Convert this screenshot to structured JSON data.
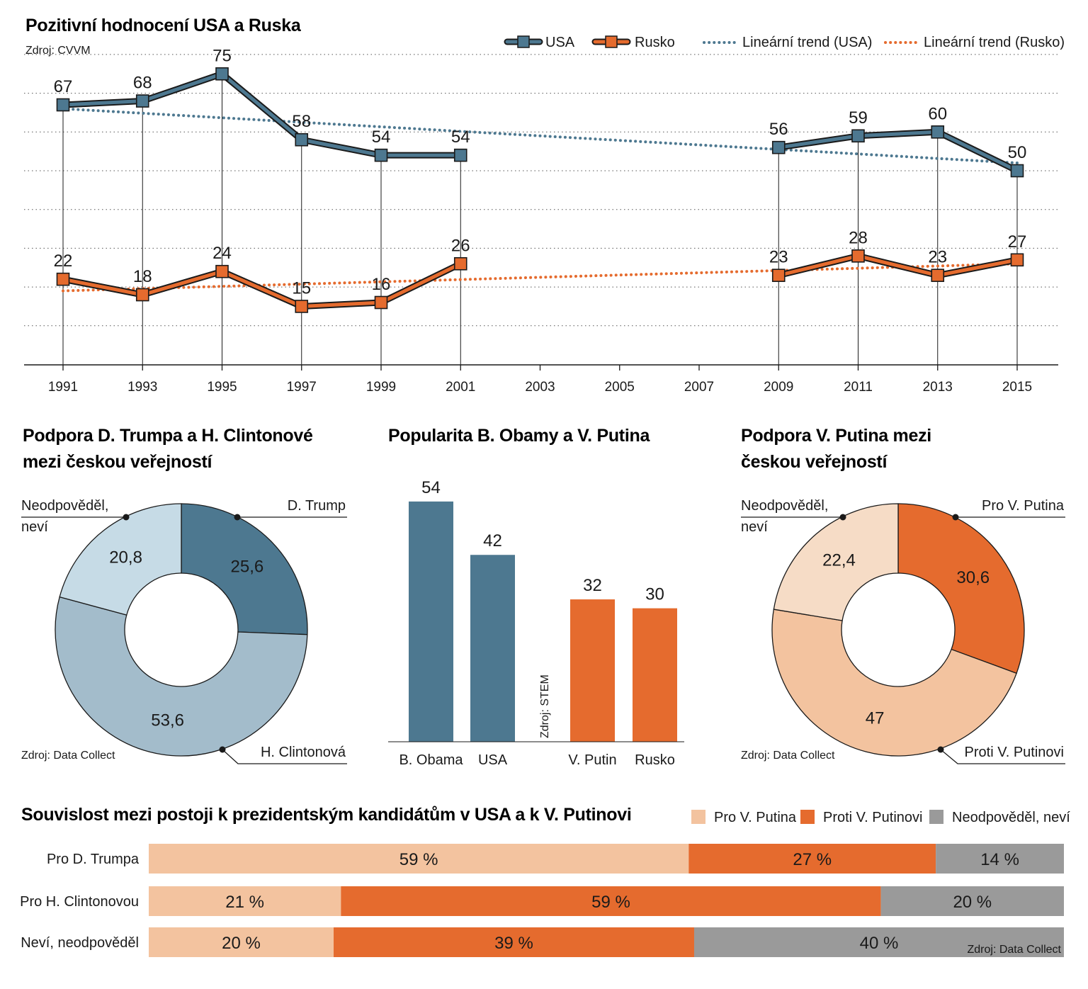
{
  "colors": {
    "usa": "#4d7890",
    "russia": "#e56b2e",
    "usa_light": "#a3bccb",
    "usa_lighter": "#c6dbe6",
    "pro_putin": "#f3c39f",
    "pro_putin_light": "#f6dcc6",
    "neutral": "#9a9a9a"
  },
  "chart_data": [
    {
      "type": "line",
      "title": "Pozitivní hodnocení USA a Ruska",
      "source": "Zdroj: CVVM",
      "x": [
        "1991",
        "1993",
        "1995",
        "1997",
        "1999",
        "2001",
        "2003",
        "2005",
        "2007",
        "2009",
        "2011",
        "2013",
        "2015"
      ],
      "series": [
        {
          "name": "USA",
          "values": [
            67,
            68,
            75,
            58,
            54,
            54,
            null,
            null,
            null,
            56,
            59,
            60,
            50
          ]
        },
        {
          "name": "Rusko",
          "values": [
            22,
            18,
            24,
            15,
            16,
            26,
            null,
            null,
            null,
            23,
            28,
            23,
            27
          ]
        }
      ],
      "trends": [
        {
          "name": "Lineární trend (USA)",
          "start": 66,
          "end": 52
        },
        {
          "name": "Lineární trend (Rusko)",
          "start": 19,
          "end": 26
        }
      ],
      "ylim": [
        0,
        80
      ],
      "grid": true,
      "legend": "top-right"
    },
    {
      "type": "pie",
      "title": "Podpora D. Trumpa a H. Clintonové mezi českou veřejností",
      "title_lines": [
        "Podpora D. Trumpa a H. Clintonové",
        "mezi českou veřejností"
      ],
      "source": "Zdroj: Data Collect",
      "slices": [
        {
          "name": "D. Trump",
          "value": 25.6,
          "label": "25,6"
        },
        {
          "name": "H. Clintonová",
          "value": 53.6,
          "label": "53,6"
        },
        {
          "name": "Neodpověděl, neví",
          "value": 20.8,
          "label": "20,8"
        }
      ],
      "callout_neutral": [
        "Neodpověděl,",
        "neví"
      ]
    },
    {
      "type": "bar",
      "title": "Popularita B. Obamy a V. Putina",
      "source": "Zdroj: STEM",
      "categories": [
        "B. Obama",
        "USA",
        "V. Putin",
        "Rusko"
      ],
      "values": [
        54,
        42,
        32,
        30
      ]
    },
    {
      "type": "pie",
      "title": "Podpora V. Putina mezi českou veřejností",
      "title_lines": [
        "Podpora V. Putina mezi",
        "českou veřejností"
      ],
      "source": "Zdroj: Data Collect",
      "slices": [
        {
          "name": "Pro V. Putina",
          "value": 30.6,
          "label": "30,6"
        },
        {
          "name": "Proti V. Putinovi",
          "value": 47,
          "label": "47"
        },
        {
          "name": "Neodpověděl, neví",
          "value": 22.4,
          "label": "22,4"
        }
      ],
      "callout_neutral": [
        "Neodpověděl,",
        "neví"
      ]
    },
    {
      "type": "bar",
      "stacked": true,
      "title": "Souvislost mezi postoji k prezidentským kandidátům v USA a k V. Putinovi",
      "source": "Zdroj: Data Collect",
      "categories": [
        "Pro D. Trumpa",
        "Pro H. Clintonovou",
        "Neví, neodpověděl"
      ],
      "series": [
        {
          "name": "Pro V. Putina",
          "values": [
            59,
            21,
            20
          ]
        },
        {
          "name": "Proti V. Putinovi",
          "values": [
            27,
            59,
            39
          ]
        },
        {
          "name": "Neodpověděl, neví",
          "values": [
            14,
            20,
            40
          ]
        }
      ],
      "value_suffix": " %",
      "legend": "top-right"
    }
  ]
}
